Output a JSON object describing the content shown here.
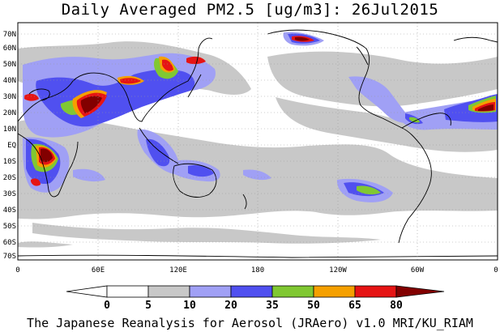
{
  "title": "Daily Averaged PM2.5 [ug/m3]: 26Jul2015",
  "footer": "The Japanese Reanalysis for Aerosol (JRAero) v1.0 MRI/KU_RIAM",
  "map": {
    "lat_labels": [
      "70N",
      "60N",
      "50N",
      "40N",
      "30N",
      "20N",
      "10N",
      "EQ",
      "10S",
      "20S",
      "30S",
      "40S",
      "50S",
      "60S",
      "70S"
    ],
    "lon_labels": [
      "0",
      "60E",
      "120E",
      "180",
      "120W",
      "60W",
      "0"
    ],
    "coastline_color": "#000000",
    "gridline_style": "dotted"
  },
  "colorbar": {
    "levels": [
      "0",
      "5",
      "10",
      "20",
      "35",
      "50",
      "65",
      "80"
    ],
    "colors": [
      "#ffffff",
      "#c8c8c8",
      "#a0a0f5",
      "#5050f0",
      "#80c832",
      "#f5a000",
      "#e61414",
      "#820000"
    ]
  }
}
